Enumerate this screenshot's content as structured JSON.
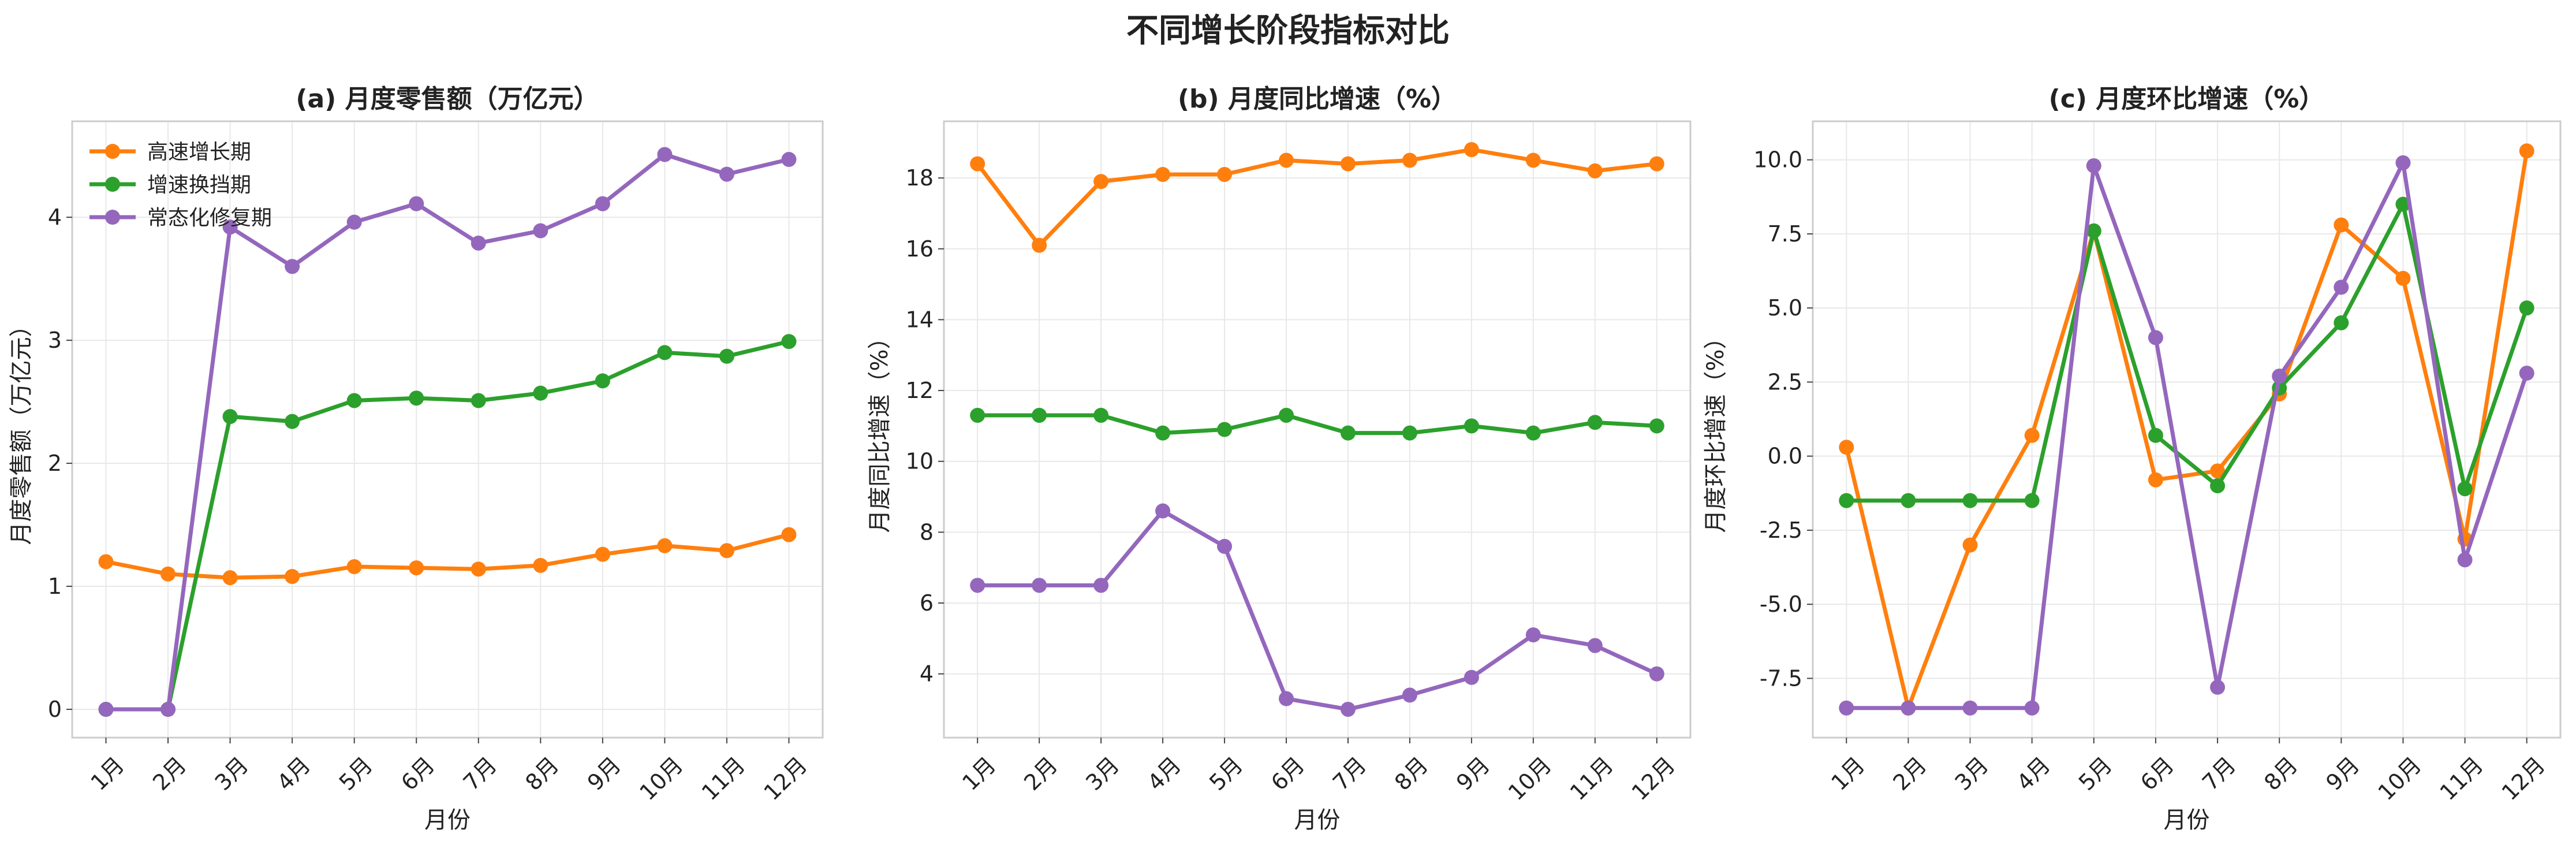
{
  "title": "不同增长阶段指标对比",
  "colors": {
    "high_growth": "#ff7f0e",
    "transition": "#2ca02c",
    "normal_recovery": "#9467bd"
  },
  "chart_data": [
    {
      "type": "line",
      "title": "(a) 月度零售额（万亿元）",
      "xlabel": "月份",
      "ylabel": "月度零售额（万亿元）",
      "categories": [
        "1月",
        "2月",
        "3月",
        "4月",
        "5月",
        "6月",
        "7月",
        "8月",
        "9月",
        "10月",
        "11月",
        "12月"
      ],
      "ylim": [
        -0.23,
        4.78
      ],
      "yticks": [
        0,
        1,
        2,
        3,
        4
      ],
      "ytick_labels": [
        "0",
        "1",
        "2",
        "3",
        "4"
      ],
      "grid": true,
      "legend": "top-left",
      "series": [
        {
          "name": "高速增长期",
          "values": [
            1.2,
            1.1,
            1.07,
            1.08,
            1.16,
            1.15,
            1.14,
            1.17,
            1.26,
            1.33,
            1.29,
            1.42
          ]
        },
        {
          "name": "增速换挡期",
          "values": [
            0,
            0,
            2.38,
            2.34,
            2.51,
            2.53,
            2.51,
            2.57,
            2.67,
            2.9,
            2.87,
            2.99
          ]
        },
        {
          "name": "常态化修复期",
          "values": [
            0,
            0,
            3.92,
            3.6,
            3.96,
            4.11,
            3.79,
            3.89,
            4.11,
            4.51,
            4.35,
            4.47
          ]
        }
      ]
    },
    {
      "type": "line",
      "title": "(b) 月度同比增速（%）",
      "xlabel": "月份",
      "ylabel": "月度同比增速（%）",
      "categories": [
        "1月",
        "2月",
        "3月",
        "4月",
        "5月",
        "6月",
        "7月",
        "8月",
        "9月",
        "10月",
        "11月",
        "12月"
      ],
      "ylim": [
        2.2,
        19.6
      ],
      "yticks": [
        4,
        6,
        8,
        10,
        12,
        14,
        16,
        18
      ],
      "ytick_labels": [
        "4",
        "6",
        "8",
        "10",
        "12",
        "14",
        "16",
        "18"
      ],
      "grid": true,
      "series": [
        {
          "name": "高速增长期",
          "values": [
            18.4,
            16.1,
            17.9,
            18.1,
            18.1,
            18.5,
            18.4,
            18.5,
            18.8,
            18.5,
            18.2,
            18.4
          ]
        },
        {
          "name": "增速换挡期",
          "values": [
            11.3,
            11.3,
            11.3,
            10.8,
            10.9,
            11.3,
            10.8,
            10.8,
            11.0,
            10.8,
            11.1,
            11.0
          ]
        },
        {
          "name": "常态化修复期",
          "values": [
            6.5,
            6.5,
            6.5,
            8.6,
            7.6,
            3.3,
            3.0,
            3.4,
            3.9,
            5.1,
            4.8,
            4.0
          ]
        }
      ]
    },
    {
      "type": "line",
      "title": "(c) 月度环比增速（%）",
      "xlabel": "月份",
      "ylabel": "月度环比增速（%）",
      "categories": [
        "1月",
        "2月",
        "3月",
        "4月",
        "5月",
        "6月",
        "7月",
        "8月",
        "9月",
        "10月",
        "11月",
        "12月"
      ],
      "ylim": [
        -9.5,
        11.3
      ],
      "yticks": [
        -7.5,
        -5,
        -2.5,
        0,
        2.5,
        5,
        7.5,
        10
      ],
      "ytick_labels": [
        "-7.5",
        "-5.0",
        "-2.5",
        "0.0",
        "2.5",
        "5.0",
        "7.5",
        "10.0"
      ],
      "grid": true,
      "series": [
        {
          "name": "高速增长期",
          "values": [
            0.3,
            -8.5,
            -3.0,
            0.7,
            7.6,
            -0.8,
            -0.5,
            2.1,
            7.8,
            6.0,
            -2.8,
            10.3
          ]
        },
        {
          "name": "增速换挡期",
          "values": [
            -1.5,
            -1.5,
            -1.5,
            -1.5,
            7.6,
            0.7,
            -1.0,
            2.3,
            4.5,
            8.5,
            -1.1,
            5.0
          ]
        },
        {
          "name": "常态化修复期",
          "values": [
            -8.5,
            -8.5,
            -8.5,
            -8.5,
            9.8,
            4.0,
            -7.8,
            2.7,
            5.7,
            9.9,
            -3.5,
            2.8
          ]
        }
      ]
    }
  ]
}
